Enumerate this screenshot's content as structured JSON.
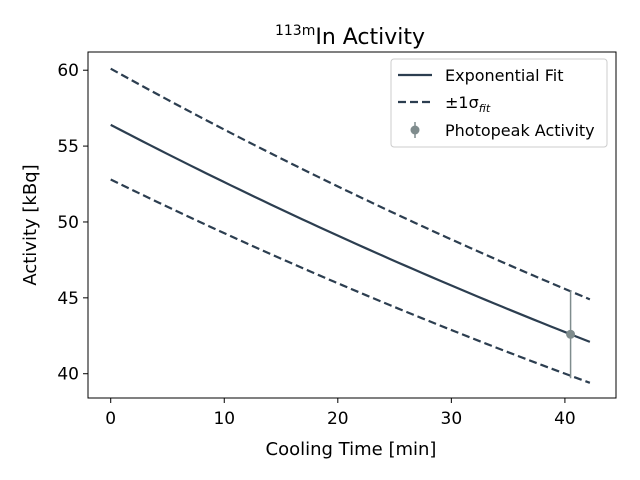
{
  "chart_data": {
    "type": "line",
    "title_sup": "113m",
    "title_main": "In Activity",
    "xlabel": "Cooling Time [min]",
    "ylabel": "Activity [kBq]",
    "xlim": [
      -2,
      44.5
    ],
    "ylim": [
      38.4,
      61.2
    ],
    "xticks": [
      0,
      10,
      20,
      30,
      40
    ],
    "yticks": [
      40,
      45,
      50,
      55,
      60
    ],
    "grid": false,
    "legend_position": "top-right",
    "decay_fit": {
      "x_range": [
        0,
        42.2
      ],
      "fit": {
        "start": 56.4,
        "end": 42.1
      },
      "upper": {
        "start": 60.1,
        "end": 44.9
      },
      "lower": {
        "start": 52.8,
        "end": 39.4
      }
    },
    "series": [
      {
        "name": "Exponential Fit",
        "style": "solid",
        "color": "#2c3e50"
      },
      {
        "name": "±1σ",
        "name_sub": "fit",
        "style": "dashed",
        "color": "#2c3e50"
      },
      {
        "name": "Photopeak Activity",
        "style": "errorbar",
        "color": "#7f8c8d",
        "points": [
          {
            "x": 40.5,
            "y": 42.6,
            "yerr": 2.9
          }
        ]
      }
    ]
  }
}
